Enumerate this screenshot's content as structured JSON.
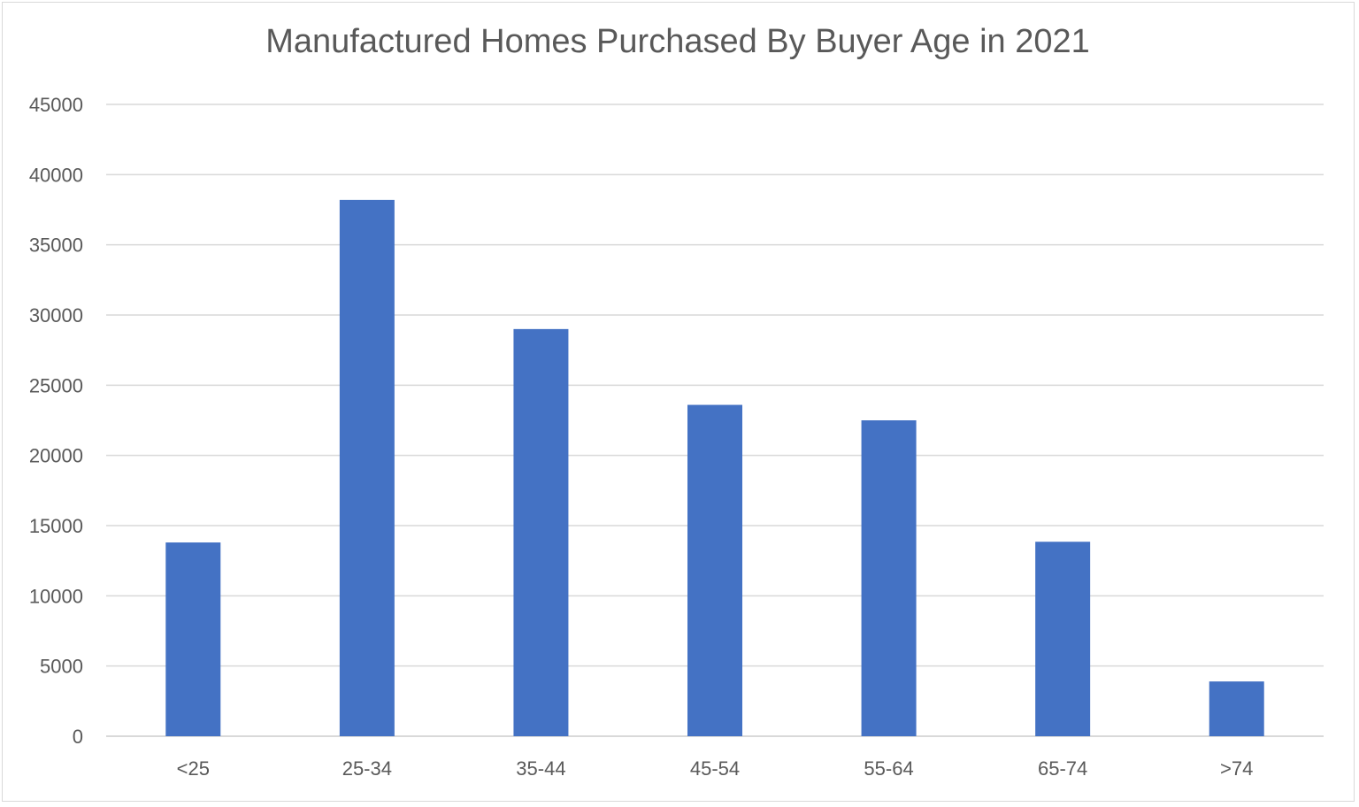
{
  "chart_data": {
    "type": "bar",
    "title": "Manufactured Homes Purchased By Buyer Age in 2021",
    "xlabel": "",
    "ylabel": "",
    "categories": [
      "<25",
      "25-34",
      "35-44",
      "45-54",
      "55-64",
      "65-74",
      ">74"
    ],
    "values": [
      13800,
      38200,
      29000,
      23600,
      22500,
      13850,
      3900
    ],
    "ylim": [
      0,
      45000
    ],
    "yticks": [
      "0",
      "5000",
      "10000",
      "15000",
      "20000",
      "25000",
      "30000",
      "35000",
      "40000",
      "45000"
    ],
    "grid": true,
    "legend": "none",
    "colors": {
      "bar": "#4472c4",
      "grid": "#d9d9d9",
      "text": "#595959"
    }
  }
}
